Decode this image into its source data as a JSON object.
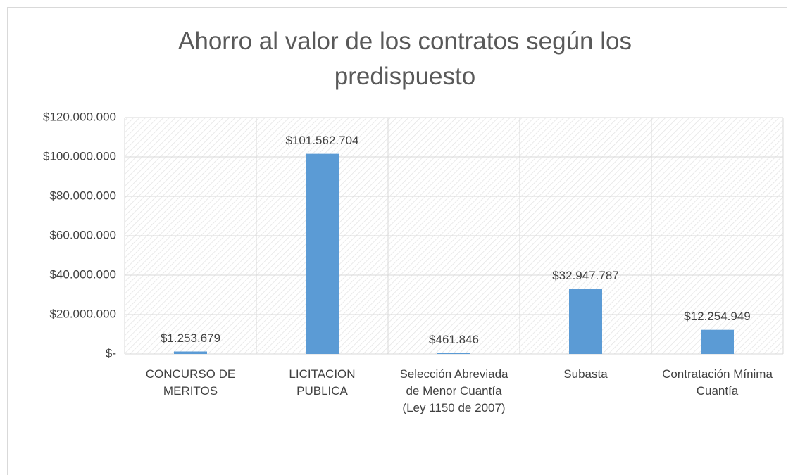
{
  "chart_data": {
    "type": "bar",
    "title": "Ahorro al valor de los contratos según los predispuesto",
    "categories": [
      "CONCURSO DE MERITOS",
      "LICITACION PUBLICA",
      "Selección Abreviada de Menor Cuantía (Ley 1150 de 2007)",
      "Subasta",
      "Contratación Mínima Cuantía"
    ],
    "values": [
      1253679,
      101562704,
      461846,
      32947787,
      12254949
    ],
    "value_labels": [
      "$1.253.679",
      "$101.562.704",
      "$461.846",
      "$32.947.787",
      "$12.254.949"
    ],
    "color": "#5b9bd5",
    "ylim": [
      0,
      120000000
    ],
    "yticks": [
      {
        "value": 0,
        "label": "$-"
      },
      {
        "value": 20000000,
        "label": "$20.000.000"
      },
      {
        "value": 40000000,
        "label": "$40.000.000"
      },
      {
        "value": 60000000,
        "label": "$60.000.000"
      },
      {
        "value": 80000000,
        "label": "$80.000.000"
      },
      {
        "value": 100000000,
        "label": "$100.000.000"
      },
      {
        "value": 120000000,
        "label": "$120.000.000"
      }
    ],
    "grid": true
  }
}
